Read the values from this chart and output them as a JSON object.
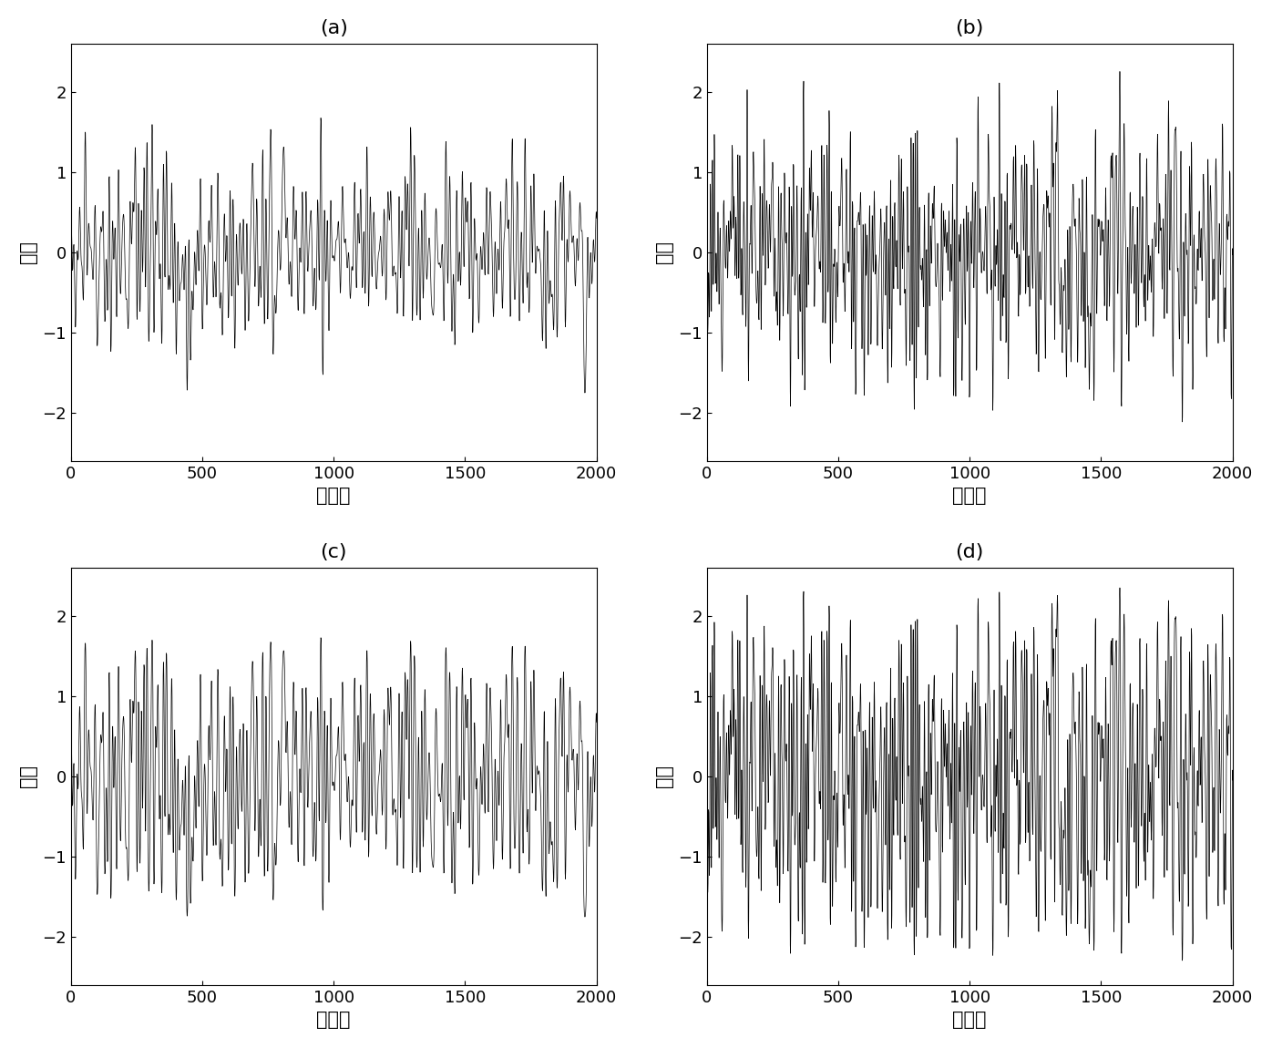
{
  "n_samples": 2048,
  "xlim": [
    0,
    2000
  ],
  "ylim": [
    -2.6,
    2.6
  ],
  "yticks": [
    -2,
    -1,
    0,
    1,
    2
  ],
  "xticks": [
    0,
    500,
    1000,
    1500,
    2000
  ],
  "xlabel": "采样点",
  "ylabel": "信号",
  "titles": [
    "(a)",
    "(b)",
    "(c)",
    "(d)"
  ],
  "line_color": "#000000",
  "line_width": 0.5,
  "bg_color": "#ffffff",
  "subplot_label_fontsize": 16,
  "axis_label_fontsize": 15,
  "tick_fontsize": 13
}
